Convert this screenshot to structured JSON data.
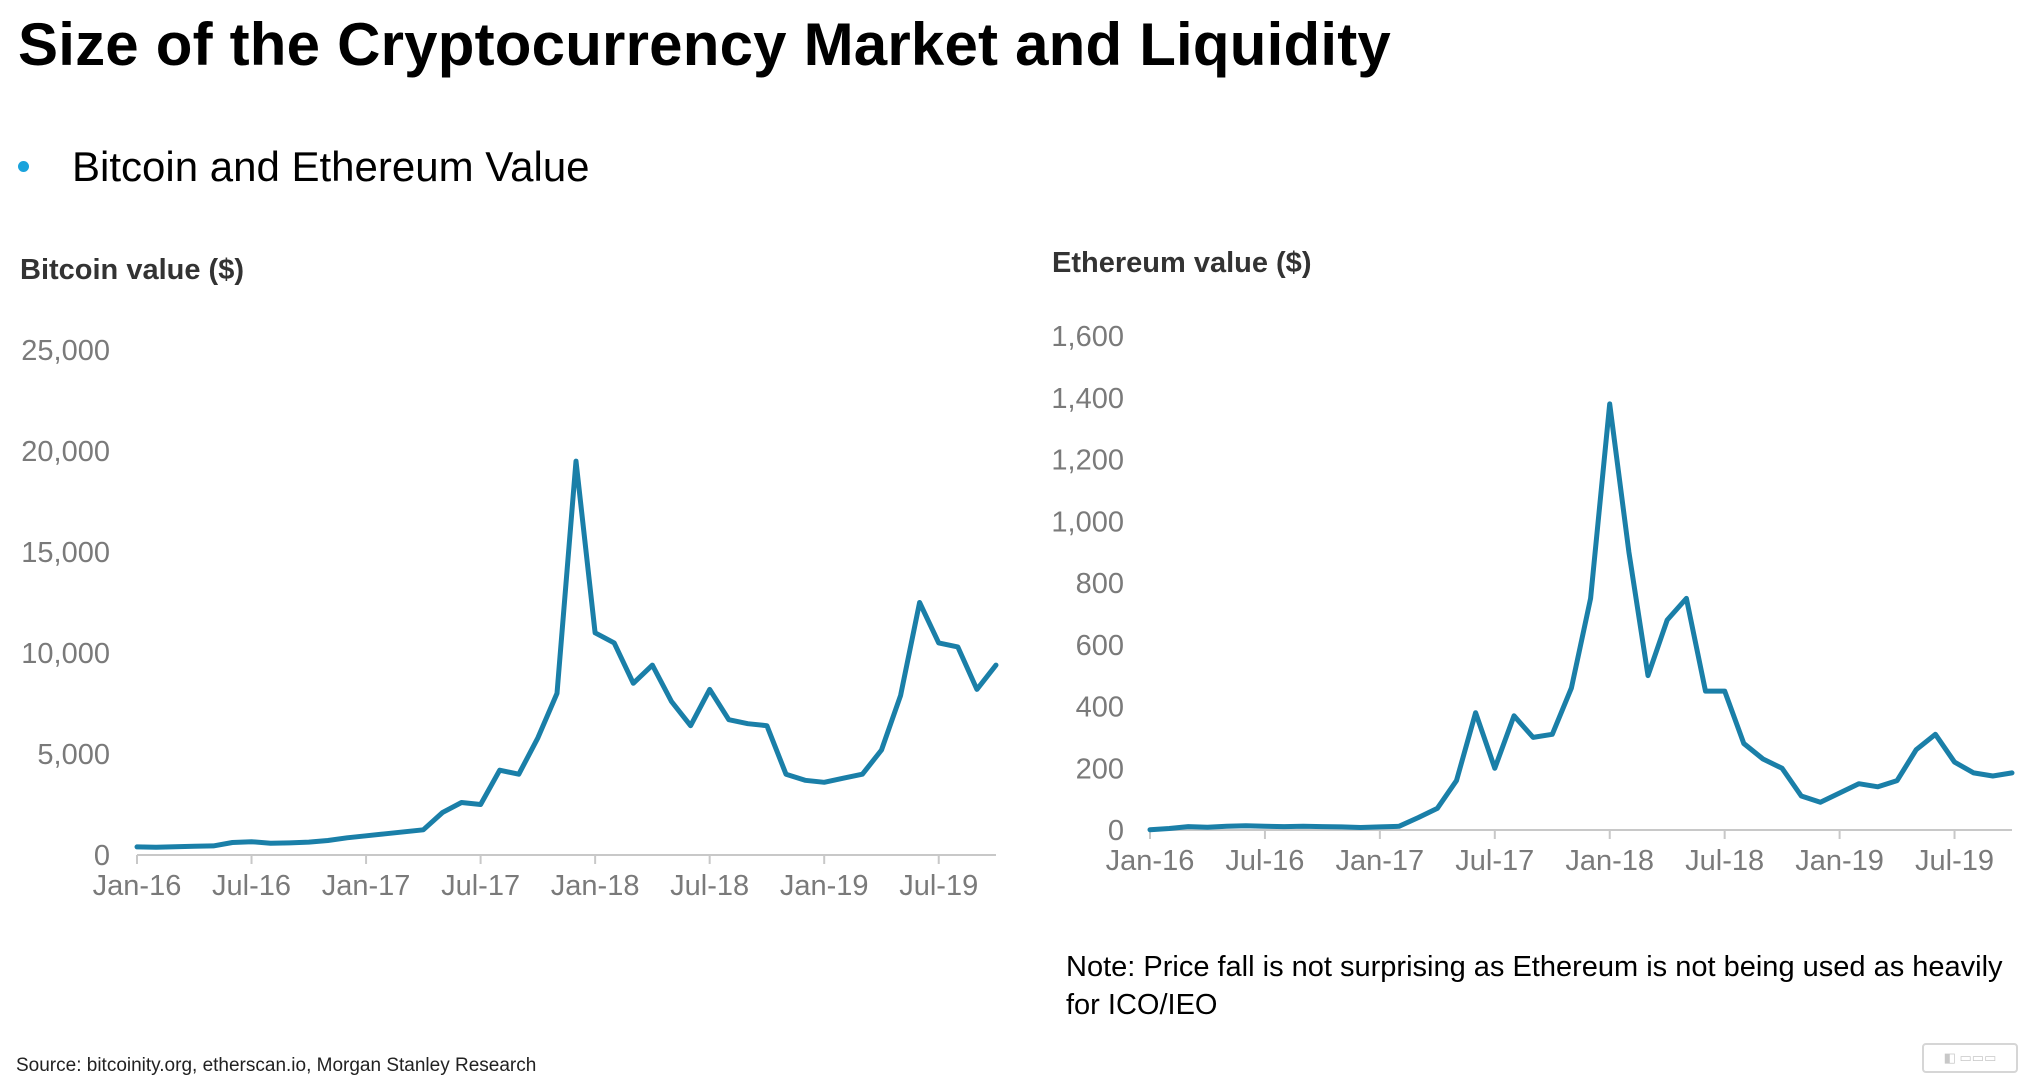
{
  "slide": {
    "title": "Size of the Cryptocurrency Market and Liquidity",
    "bullet": "Bitcoin and Ethereum Value",
    "note": "Note: Price fall is not surprising as Ethereum is not being used as heavily for ICO/IEO",
    "source": "Source: bitcoinity.org, etherscan.io, Morgan Stanley Research",
    "bullet_color": "#1aa3dc",
    "line_color": "#1a7fa8"
  },
  "chart_data": [
    {
      "type": "line",
      "title": "Bitcoin value ($)",
      "xlabel": "",
      "ylabel": "",
      "ylim": [
        0,
        25000
      ],
      "yticks": [
        0,
        5000,
        10000,
        15000,
        20000,
        25000
      ],
      "ytick_labels": [
        "0",
        "5,000",
        "10,000",
        "15,000",
        "20,000",
        "25,000"
      ],
      "xticks": [
        "Jan-16",
        "Jul-16",
        "Jan-17",
        "Jul-17",
        "Jan-18",
        "Jul-18",
        "Jan-19",
        "Jul-19"
      ],
      "xlim": [
        "2016-01",
        "2019-10"
      ],
      "grid": false,
      "series": [
        {
          "x": [
            "2016-01",
            "2016-02",
            "2016-03",
            "2016-04",
            "2016-05",
            "2016-06",
            "2016-07",
            "2016-08",
            "2016-09",
            "2016-10",
            "2016-11",
            "2016-12",
            "2017-01",
            "2017-02",
            "2017-03",
            "2017-04",
            "2017-05",
            "2017-06",
            "2017-07",
            "2017-08",
            "2017-09",
            "2017-10",
            "2017-11",
            "2017-12",
            "2018-01",
            "2018-02",
            "2018-03",
            "2018-04",
            "2018-05",
            "2018-06",
            "2018-07",
            "2018-08",
            "2018-09",
            "2018-10",
            "2018-11",
            "2018-12",
            "2019-01",
            "2019-02",
            "2019-03",
            "2019-04",
            "2019-05",
            "2019-06",
            "2019-07",
            "2019-08",
            "2019-09",
            "2019-10"
          ],
          "y": [
            400,
            380,
            410,
            430,
            450,
            620,
            660,
            580,
            600,
            640,
            720,
            850,
            950,
            1050,
            1150,
            1250,
            2100,
            2600,
            2500,
            4200,
            4000,
            5800,
            8000,
            19500,
            11000,
            10500,
            8500,
            9400,
            7600,
            6400,
            8200,
            6700,
            6500,
            6400,
            4000,
            3700,
            3600,
            3800,
            4000,
            5200,
            7900,
            12500,
            10500,
            10300,
            8200,
            9400
          ]
        }
      ]
    },
    {
      "type": "line",
      "title": "Ethereum value ($)",
      "xlabel": "",
      "ylabel": "",
      "ylim": [
        0,
        1600
      ],
      "yticks": [
        0,
        200,
        400,
        600,
        800,
        1000,
        1200,
        1400,
        1600
      ],
      "ytick_labels": [
        "0",
        "200",
        "400",
        "600",
        "800",
        "1,000",
        "1,200",
        "1,400",
        "1,600"
      ],
      "xticks": [
        "Jan-16",
        "Jul-16",
        "Jan-17",
        "Jul-17",
        "Jan-18",
        "Jul-18",
        "Jan-19",
        "Jul-19"
      ],
      "xlim": [
        "2016-01",
        "2019-10"
      ],
      "grid": false,
      "series": [
        {
          "x": [
            "2016-01",
            "2016-02",
            "2016-03",
            "2016-04",
            "2016-05",
            "2016-06",
            "2016-07",
            "2016-08",
            "2016-09",
            "2016-10",
            "2016-11",
            "2016-12",
            "2017-01",
            "2017-02",
            "2017-03",
            "2017-04",
            "2017-05",
            "2017-06",
            "2017-07",
            "2017-08",
            "2017-09",
            "2017-10",
            "2017-11",
            "2017-12",
            "2018-01",
            "2018-02",
            "2018-03",
            "2018-04",
            "2018-05",
            "2018-06",
            "2018-07",
            "2018-08",
            "2018-09",
            "2018-10",
            "2018-11",
            "2018-12",
            "2019-01",
            "2019-02",
            "2019-03",
            "2019-04",
            "2019-05",
            "2019-06",
            "2019-07",
            "2019-08",
            "2019-09",
            "2019-10"
          ],
          "y": [
            1,
            5,
            11,
            9,
            12,
            14,
            12,
            11,
            12,
            11,
            10,
            8,
            10,
            12,
            40,
            70,
            160,
            380,
            200,
            370,
            300,
            310,
            460,
            750,
            1380,
            900,
            500,
            680,
            750,
            450,
            450,
            280,
            230,
            200,
            110,
            90,
            120,
            150,
            140,
            160,
            260,
            310,
            220,
            185,
            175,
            185
          ]
        }
      ]
    }
  ]
}
